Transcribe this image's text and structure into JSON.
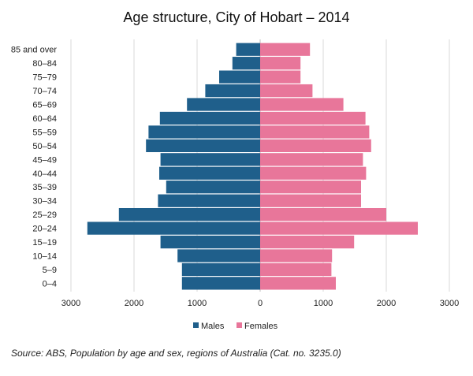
{
  "chart_data": {
    "type": "bar",
    "title": "Age structure, City of Hobart – 2014",
    "orientation": "horizontal-pyramid",
    "categories": [
      "0–4",
      "5–9",
      "10–14",
      "15–19",
      "20–24",
      "25–29",
      "30–34",
      "35–39",
      "40–44",
      "45–49",
      "50–54",
      "55–59",
      "60–64",
      "65–69",
      "70–74",
      "75–79",
      "80–84",
      "85 and over"
    ],
    "series": [
      {
        "name": "Males",
        "color": "#1f5f8b",
        "direction": "left",
        "values": [
          1240,
          1240,
          1310,
          1580,
          2740,
          2240,
          1620,
          1490,
          1600,
          1580,
          1810,
          1770,
          1590,
          1160,
          870,
          650,
          440,
          380
        ]
      },
      {
        "name": "Females",
        "color": "#e8769a",
        "direction": "right",
        "values": [
          1200,
          1130,
          1140,
          1490,
          2500,
          2000,
          1600,
          1600,
          1680,
          1630,
          1760,
          1730,
          1670,
          1320,
          830,
          640,
          640,
          790
        ]
      }
    ],
    "x_ticks": [
      "3000",
      "2000",
      "1000",
      "0",
      "1000",
      "2000",
      "3000"
    ],
    "xlim": [
      -3000,
      3000
    ],
    "grid": "vertical",
    "legend_position": "bottom"
  },
  "source_note": "Source:  ABS, Population by age and sex, regions of Australia (Cat. no. 3235.0)"
}
